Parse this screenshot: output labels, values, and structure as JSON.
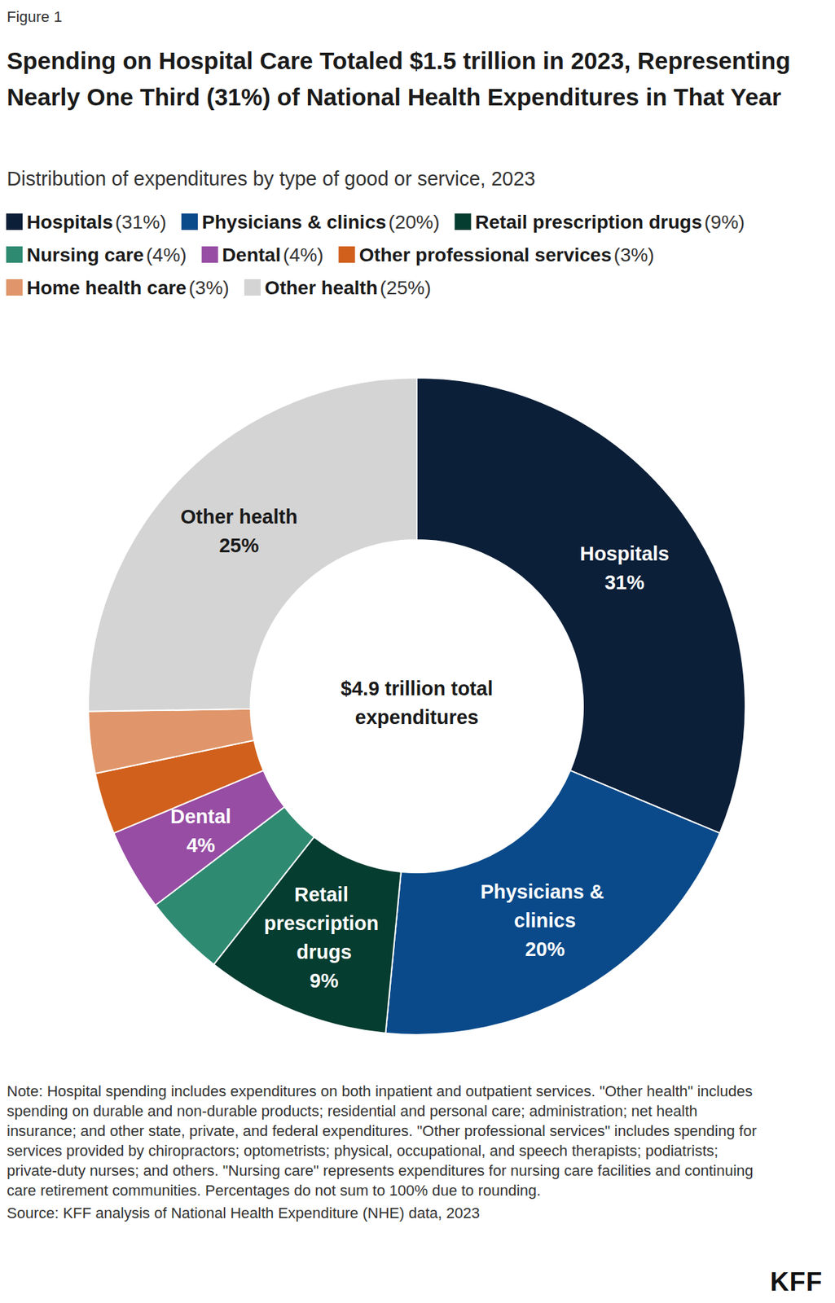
{
  "chart_data": {
    "type": "pie",
    "figure_label": "Figure 1",
    "title": "Spending on Hospital Care Totaled $1.5 trillion in 2023, Representing Nearly One Third (31%) of National Health Expenditures in That Year",
    "subtitle": "Distribution of expenditures by type of good or service, 2023",
    "categories": [
      "Hospitals",
      "Physicians & clinics",
      "Retail prescription drugs",
      "Nursing care",
      "Dental",
      "Other professional services",
      "Home health care",
      "Other health"
    ],
    "values": [
      31,
      20,
      9,
      4,
      4,
      3,
      3,
      25
    ],
    "colors": [
      "#0b1f38",
      "#0a4a8a",
      "#053d30",
      "#2f8a72",
      "#974da4",
      "#d1601c",
      "#e0966a",
      "#d4d4d4"
    ],
    "value_labels": [
      "31%",
      "20%",
      "9%",
      null,
      "4%",
      null,
      null,
      "25%"
    ],
    "legend_value_labels": [
      "(31%)",
      "(20%)",
      "(9%)",
      "(4%)",
      "(4%)",
      "(3%)",
      "(3%)",
      "(25%)"
    ],
    "legend": "top-left",
    "data_labels": true,
    "center_text": "$4.9 trillion total expenditures",
    "note": "Note: Hospital spending includes expenditures on both inpatient and outpatient services. \"Other health\" includes spending on durable and non-durable products; residential and personal care; administration; net health insurance; and other state, private, and federal expenditures. \"Other professional services\" includes spending for services provided by chiropractors; optometrists; physical, occupational, and speech therapists; podiatrists; private-duty nurses; and others. \"Nursing care\" represents expenditures for nursing care facilities and continuing care retirement communities. Percentages do not sum to 100% due to rounding.",
    "source": "Source: KFF analysis of National Health Expenditure (NHE) data, 2023",
    "logo": "KFF"
  }
}
